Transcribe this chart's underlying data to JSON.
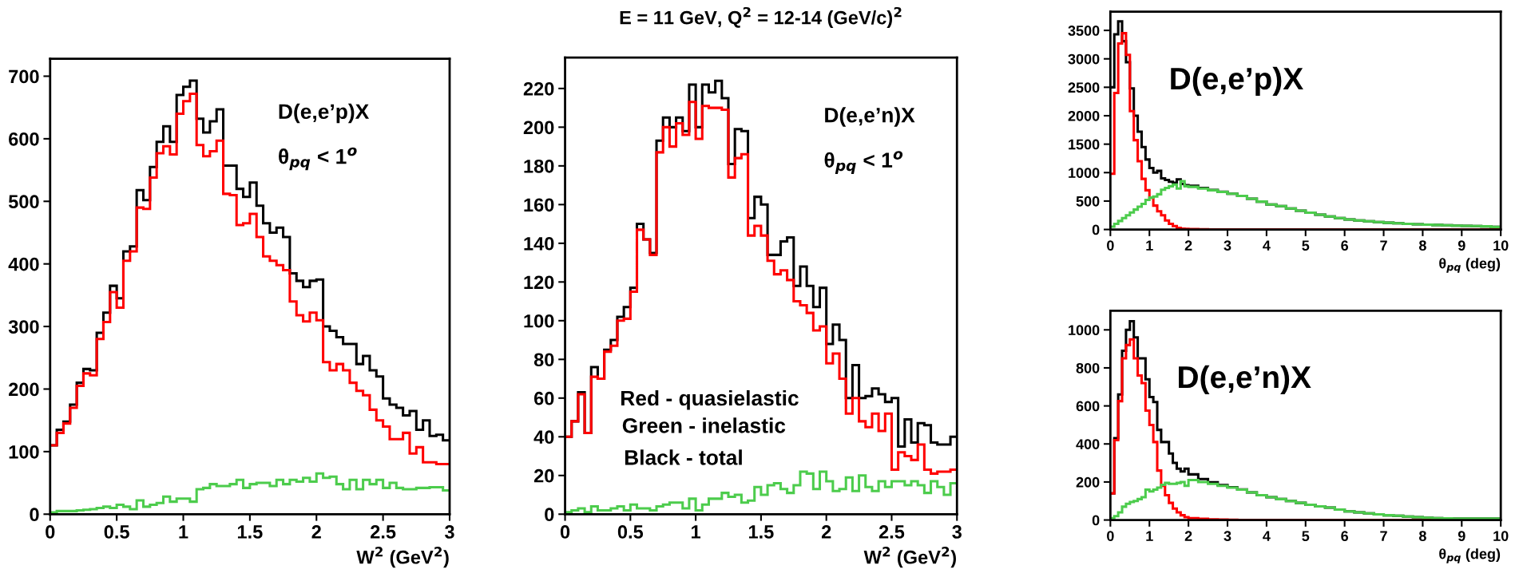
{
  "chart_data": [
    {
      "type": "histogram",
      "xlabel": "W$^{2}$ (GeV$^{2}$)",
      "annotations": [
        "D(e,e’p)X",
        "θ$_{pq}$ < 1$^{o}$"
      ],
      "bins": [
        0,
        0.05,
        0.1,
        0.15,
        0.2,
        0.25,
        0.3,
        0.35,
        0.4,
        0.45,
        0.5,
        0.55,
        0.6,
        0.65,
        0.7,
        0.75,
        0.8,
        0.85,
        0.9,
        0.95,
        1,
        1.05,
        1.1,
        1.15,
        1.2,
        1.25,
        1.3,
        1.35,
        1.4,
        1.45,
        1.5,
        1.55,
        1.6,
        1.65,
        1.7,
        1.75,
        1.8,
        1.85,
        1.9,
        1.95,
        2,
        2.05,
        2.1,
        2.15,
        2.2,
        2.25,
        2.3,
        2.35,
        2.4,
        2.45,
        2.5,
        2.55,
        2.6,
        2.65,
        2.7,
        2.75,
        2.8,
        2.85,
        2.9,
        2.95,
        3
      ],
      "series": [
        {
          "color": "#000000",
          "values": [
            110,
            135,
            148,
            175,
            210,
            232,
            230,
            290,
            322,
            365,
            345,
            420,
            428,
            518,
            502,
            555,
            595,
            620,
            595,
            670,
            683,
            693,
            632,
            610,
            628,
            647,
            557,
            557,
            520,
            507,
            530,
            493,
            465,
            450,
            458,
            443,
            385,
            373,
            363,
            373,
            375,
            300,
            293,
            283,
            272,
            272,
            240,
            253,
            230,
            220,
            185,
            175,
            170,
            158,
            165,
            135,
            150,
            125,
            127,
            118
          ]
        },
        {
          "color": "#ff0000",
          "values": [
            110,
            130,
            145,
            170,
            205,
            225,
            222,
            280,
            307,
            355,
            330,
            405,
            420,
            490,
            488,
            538,
            577,
            588,
            575,
            640,
            660,
            672,
            590,
            572,
            580,
            597,
            512,
            510,
            462,
            465,
            480,
            443,
            412,
            405,
            398,
            390,
            340,
            318,
            308,
            322,
            310,
            243,
            230,
            240,
            230,
            210,
            197,
            190,
            167,
            150,
            140,
            120,
            120,
            130,
            97,
            107,
            83,
            83,
            80,
            80
          ]
        },
        {
          "color": "#4ccc4c",
          "values": [
            3,
            5,
            5,
            5,
            6,
            7,
            8,
            10,
            12,
            10,
            15,
            12,
            8,
            22,
            12,
            15,
            18,
            28,
            20,
            25,
            25,
            20,
            40,
            42,
            48,
            45,
            45,
            48,
            55,
            42,
            48,
            50,
            50,
            45,
            55,
            48,
            55,
            52,
            58,
            52,
            65,
            58,
            60,
            48,
            40,
            55,
            40,
            55,
            48,
            55,
            42,
            50,
            42,
            40,
            40,
            42,
            42,
            43,
            43,
            38
          ]
        }
      ],
      "xlim": [
        0,
        3
      ],
      "xticks": [
        0,
        0.5,
        1,
        1.5,
        2,
        2.5,
        3
      ],
      "ylim": [
        0,
        728
      ],
      "yticks": [
        0,
        100,
        200,
        300,
        400,
        500,
        600,
        700
      ],
      "grid": false
    },
    {
      "type": "histogram",
      "title": "E = 11 GeV, Q$^{2}$ = 12-14 (GeV/c)$^{2}$",
      "xlabel": "W$^{2}$ (GeV$^{2}$)",
      "annotations": [
        "D(e,e’n)X",
        "θ$_{pq}$ < 1$^{o}$",
        "Red - quasielastic",
        "Green - inelastic",
        "Black - total"
      ],
      "bins": [
        0,
        0.05,
        0.1,
        0.15,
        0.2,
        0.25,
        0.3,
        0.35,
        0.4,
        0.45,
        0.5,
        0.55,
        0.6,
        0.65,
        0.7,
        0.75,
        0.8,
        0.85,
        0.9,
        0.95,
        1,
        1.05,
        1.1,
        1.15,
        1.2,
        1.25,
        1.3,
        1.35,
        1.4,
        1.45,
        1.5,
        1.55,
        1.6,
        1.65,
        1.7,
        1.75,
        1.8,
        1.85,
        1.9,
        1.95,
        2,
        2.05,
        2.1,
        2.15,
        2.2,
        2.25,
        2.3,
        2.35,
        2.4,
        2.45,
        2.5,
        2.55,
        2.6,
        2.65,
        2.7,
        2.75,
        2.8,
        2.85,
        2.9,
        2.95,
        3
      ],
      "series": [
        {
          "color": "#000000",
          "values": [
            40,
            48,
            63,
            42,
            76,
            70,
            85,
            90,
            102,
            107,
            117,
            150,
            142,
            135,
            193,
            205,
            200,
            205,
            198,
            222,
            200,
            222,
            218,
            224,
            215,
            181,
            199,
            198,
            153,
            164,
            160,
            134,
            134,
            141,
            143,
            118,
            128,
            118,
            107,
            117,
            88,
            98,
            90,
            60,
            77,
            60,
            61,
            65,
            62,
            58,
            60,
            35,
            49,
            37,
            47,
            46,
            37,
            36,
            36,
            40
          ]
        },
        {
          "color": "#ff0000",
          "values": [
            40,
            48,
            62,
            42,
            71,
            70,
            84,
            87,
            100,
            101,
            115,
            147,
            142,
            134,
            187,
            200,
            190,
            202,
            196,
            213,
            194,
            211,
            210,
            210,
            209,
            174,
            184,
            186,
            144,
            149,
            144,
            131,
            124,
            126,
            121,
            110,
            108,
            104,
            95,
            97,
            78,
            83,
            70,
            52,
            60,
            48,
            45,
            52,
            43,
            52,
            23,
            32,
            30,
            28,
            36,
            23,
            21,
            22,
            22,
            23
          ]
        },
        {
          "color": "#4ccc4c",
          "values": [
            1,
            2,
            3,
            1,
            4,
            2,
            2,
            3,
            4,
            2,
            5,
            3,
            3,
            2,
            4,
            5,
            6,
            6,
            3,
            8,
            2,
            5,
            8,
            8,
            11,
            9,
            10,
            6,
            7,
            14,
            10,
            15,
            16,
            13,
            11,
            15,
            22,
            21,
            13,
            22,
            17,
            12,
            13,
            19,
            12,
            20,
            14,
            12,
            17,
            14,
            17,
            17,
            15,
            17,
            15,
            11,
            17,
            14,
            10,
            16
          ]
        }
      ],
      "xlim": [
        0,
        3
      ],
      "xticks": [
        0,
        0.5,
        1,
        1.5,
        2,
        2.5,
        3
      ],
      "ylim": [
        0,
        236
      ],
      "yticks": [
        0,
        20,
        40,
        60,
        80,
        100,
        120,
        140,
        160,
        180,
        200,
        220
      ],
      "grid": false
    },
    {
      "type": "histogram",
      "xlabel": "θ$_{pq}$ (deg)",
      "annotations": [
        "D(e,e’p)X"
      ],
      "bins": [
        0,
        0.1,
        0.2,
        0.3,
        0.4,
        0.5,
        0.6,
        0.7,
        0.8,
        0.9,
        1,
        1.1,
        1.2,
        1.3,
        1.4,
        1.5,
        1.6,
        1.7,
        1.8,
        1.9,
        2,
        2.25,
        2.5,
        2.75,
        3,
        3.25,
        3.5,
        3.75,
        4,
        4.25,
        4.5,
        4.75,
        5,
        5.25,
        5.5,
        5.75,
        6,
        6.25,
        6.5,
        6.75,
        7,
        7.25,
        7.5,
        7.75,
        8,
        8.25,
        8.5,
        8.75,
        9,
        9.25,
        9.5,
        9.75,
        10
      ],
      "series": [
        {
          "color": "#000000",
          "values": [
            2500,
            3430,
            3660,
            3310,
            2940,
            2480,
            2000,
            1720,
            1450,
            1230,
            1080,
            1000,
            1030,
            900,
            870,
            840,
            820,
            880,
            800,
            780,
            770,
            730,
            695,
            662,
            630,
            590,
            540,
            490,
            440,
            410,
            370,
            330,
            295,
            260,
            230,
            200,
            175,
            160,
            145,
            130,
            118,
            110,
            100,
            92,
            86,
            80,
            75,
            68,
            64,
            60,
            55,
            45
          ]
        },
        {
          "color": "#ff0000",
          "values": [
            980,
            2400,
            3270,
            3450,
            3070,
            2080,
            1570,
            1200,
            890,
            690,
            560,
            420,
            320,
            250,
            160,
            100,
            60,
            30,
            15,
            10,
            8,
            4,
            2,
            1,
            0,
            0,
            0,
            0,
            0,
            0,
            0,
            0,
            0,
            0,
            0,
            0,
            0,
            0,
            0,
            0,
            0,
            0,
            0,
            0,
            0,
            0,
            0,
            0,
            0,
            0,
            0,
            0
          ]
        },
        {
          "color": "#4ccc4c",
          "values": [
            50,
            100,
            150,
            200,
            250,
            300,
            350,
            400,
            450,
            520,
            560,
            580,
            620,
            700,
            730,
            760,
            790,
            720,
            850,
            760,
            750,
            720,
            690,
            660,
            630,
            590,
            540,
            490,
            440,
            410,
            370,
            330,
            295,
            260,
            230,
            200,
            175,
            160,
            145,
            130,
            118,
            110,
            100,
            92,
            86,
            80,
            75,
            68,
            64,
            60,
            55,
            45
          ]
        }
      ],
      "xlim": [
        0,
        10
      ],
      "xticks": [
        0,
        1,
        2,
        3,
        4,
        5,
        6,
        7,
        8,
        9,
        10
      ],
      "ylim": [
        0,
        3830
      ],
      "yticks": [
        0,
        500,
        1000,
        1500,
        2000,
        2500,
        3000,
        3500
      ],
      "grid": false
    },
    {
      "type": "histogram",
      "xlabel": "θ$_{pq}$ (deg)",
      "annotations": [
        "D(e,e’n)X"
      ],
      "bins": [
        0,
        0.1,
        0.2,
        0.3,
        0.4,
        0.5,
        0.6,
        0.7,
        0.8,
        0.9,
        1,
        1.1,
        1.2,
        1.3,
        1.4,
        1.5,
        1.6,
        1.7,
        1.8,
        1.9,
        2,
        2.25,
        2.5,
        2.75,
        3,
        3.25,
        3.5,
        3.75,
        4,
        4.25,
        4.5,
        4.75,
        5,
        5.25,
        5.5,
        5.75,
        6,
        6.25,
        6.5,
        6.75,
        7,
        7.25,
        7.5,
        7.75,
        8,
        8.25,
        8.5,
        8.75,
        9,
        9.25,
        9.5,
        9.75,
        10
      ],
      "series": [
        {
          "color": "#000000",
          "values": [
            140,
            430,
            660,
            890,
            1000,
            1045,
            960,
            850,
            850,
            740,
            647,
            620,
            474,
            410,
            410,
            350,
            300,
            270,
            255,
            270,
            240,
            215,
            198,
            184,
            172,
            161,
            145,
            130,
            120,
            110,
            100,
            90,
            80,
            72,
            65,
            55,
            45,
            40,
            35,
            30,
            25,
            22,
            18,
            15,
            12,
            10,
            9,
            8,
            8,
            8,
            8,
            8
          ]
        },
        {
          "color": "#ff0000",
          "values": [
            140,
            420,
            625,
            850,
            920,
            950,
            850,
            760,
            720,
            575,
            500,
            410,
            260,
            180,
            130,
            90,
            60,
            40,
            25,
            15,
            10,
            6,
            3,
            2,
            1,
            0,
            0,
            0,
            0,
            0,
            0,
            0,
            0,
            0,
            0,
            0,
            0,
            0,
            0,
            0,
            0,
            0,
            0,
            0,
            0,
            0,
            0,
            0,
            0,
            0,
            0,
            0
          ]
        },
        {
          "color": "#4ccc4c",
          "values": [
            10,
            20,
            40,
            70,
            85,
            95,
            100,
            110,
            120,
            160,
            150,
            160,
            170,
            185,
            195,
            190,
            190,
            195,
            200,
            180,
            210,
            200,
            190,
            180,
            170,
            160,
            145,
            130,
            120,
            110,
            100,
            90,
            80,
            72,
            65,
            55,
            45,
            40,
            35,
            30,
            25,
            22,
            18,
            15,
            12,
            10,
            9,
            8,
            8,
            8,
            8,
            8
          ]
        }
      ],
      "xlim": [
        0,
        10
      ],
      "xticks": [
        0,
        1,
        2,
        3,
        4,
        5,
        6,
        7,
        8,
        9,
        10
      ],
      "ylim": [
        0,
        1100
      ],
      "yticks": [
        0,
        200,
        400,
        600,
        800,
        1000
      ],
      "grid": false
    }
  ]
}
